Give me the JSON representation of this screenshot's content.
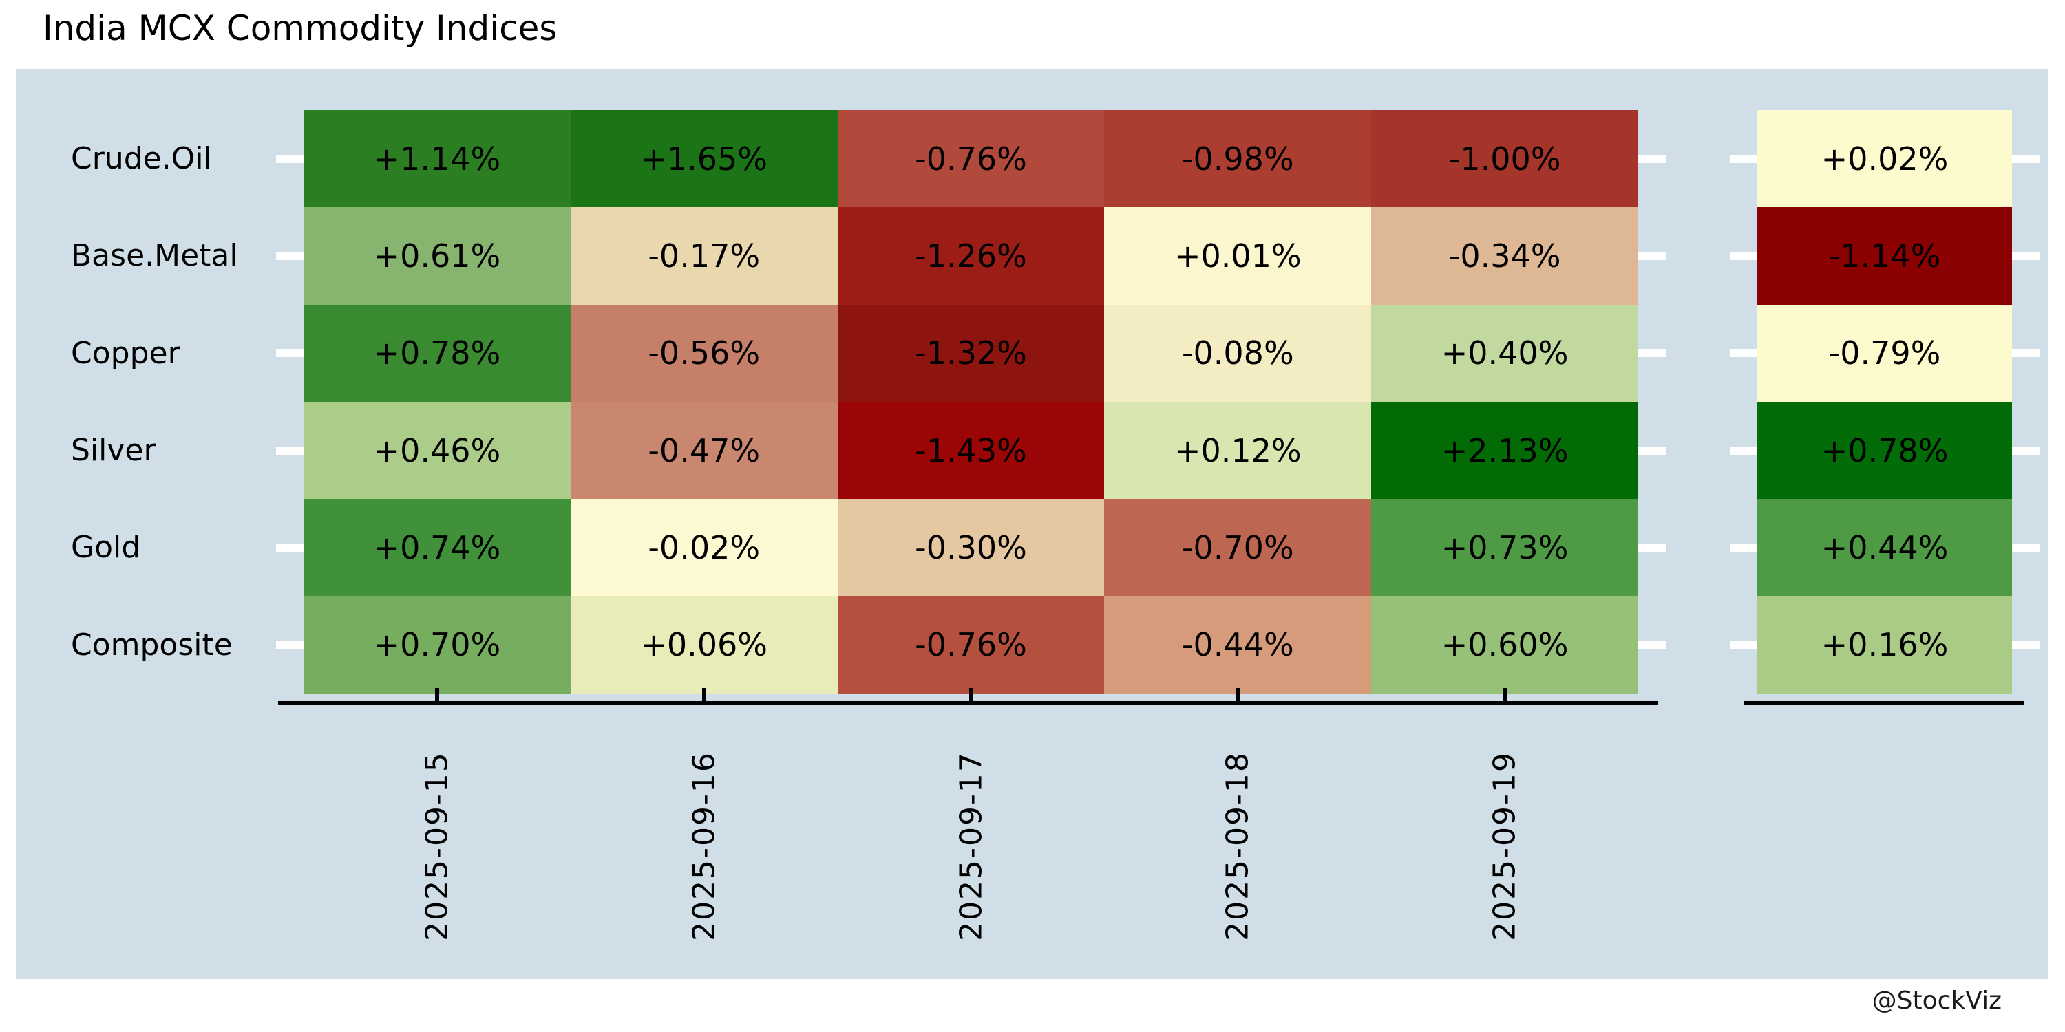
{
  "title": "India MCX Commodity Indices",
  "watermark": "@StockViz",
  "chart_data": {
    "type": "heatmap",
    "title": "India MCX Commodity Indices",
    "rows": [
      "Crude.Oil",
      "Base.Metal",
      "Copper",
      "Silver",
      "Gold",
      "Composite"
    ],
    "columns": [
      "2025-09-15",
      "2025-09-16",
      "2025-09-17",
      "2025-09-18",
      "2025-09-19"
    ],
    "values": [
      [
        1.14,
        1.65,
        -0.76,
        -0.98,
        -1.0
      ],
      [
        0.61,
        -0.17,
        -1.26,
        0.01,
        -0.34
      ],
      [
        0.78,
        -0.56,
        -1.32,
        -0.08,
        0.4
      ],
      [
        0.46,
        -0.47,
        -1.43,
        0.12,
        2.13
      ],
      [
        0.74,
        -0.02,
        -0.3,
        -0.7,
        0.73
      ],
      [
        0.7,
        0.06,
        -0.76,
        -0.44,
        0.6
      ]
    ],
    "labels": [
      [
        "+1.14%",
        "+1.65%",
        "-0.76%",
        "-0.98%",
        "-1.00%"
      ],
      [
        "+0.61%",
        "-0.17%",
        "-1.26%",
        "+0.01%",
        "-0.34%"
      ],
      [
        "+0.78%",
        "-0.56%",
        "-1.32%",
        "-0.08%",
        "+0.40%"
      ],
      [
        "+0.46%",
        "-0.47%",
        "-1.43%",
        "+0.12%",
        "+2.13%"
      ],
      [
        "+0.74%",
        "-0.02%",
        "-0.30%",
        "-0.70%",
        "+0.73%"
      ],
      [
        "+0.70%",
        "+0.06%",
        "-0.76%",
        "-0.44%",
        "+0.60%"
      ]
    ],
    "cell_colors": [
      [
        "#2b7e22",
        "#1b7416",
        "#b14a3c",
        "#ab3d31",
        "#a5352b"
      ],
      [
        "#87b46e",
        "#e9d7ae",
        "#9c1d15",
        "#fbf6cd",
        "#deb794"
      ],
      [
        "#398a31",
        "#c67f68",
        "#8e150f",
        "#f4ecc2",
        "#c1d89e"
      ],
      [
        "#accd8a",
        "#ca876f",
        "#9c0505",
        "#d8e6b0",
        "#026b06"
      ],
      [
        "#40913a",
        "#fdfad3",
        "#e5c8a2",
        "#bd6752",
        "#4f9a45"
      ],
      [
        "#76ad5e",
        "#e7ecb8",
        "#b5503f",
        "#d69b7b",
        "#97c178"
      ]
    ],
    "summary_column": {
      "values": [
        0.02,
        -1.14,
        -0.79,
        0.78,
        0.44,
        0.16
      ],
      "labels": [
        "+0.02%",
        "-1.14%",
        "-0.79%",
        "+0.78%",
        "+0.44%",
        "+0.16%"
      ],
      "colors": [
        "#fdfbce",
        "#8b0000",
        "#fdfbce",
        "#016c08",
        "#4f9a45",
        "#a9cb86"
      ]
    },
    "layout_hints": {
      "legend": "none",
      "grid": "off",
      "x_tick_rotation": -90
    },
    "colors": {
      "panel_bg": "#d0dee8",
      "axis": "#000000",
      "tick_white": "#ffffff",
      "cell_text": "#000000"
    }
  }
}
